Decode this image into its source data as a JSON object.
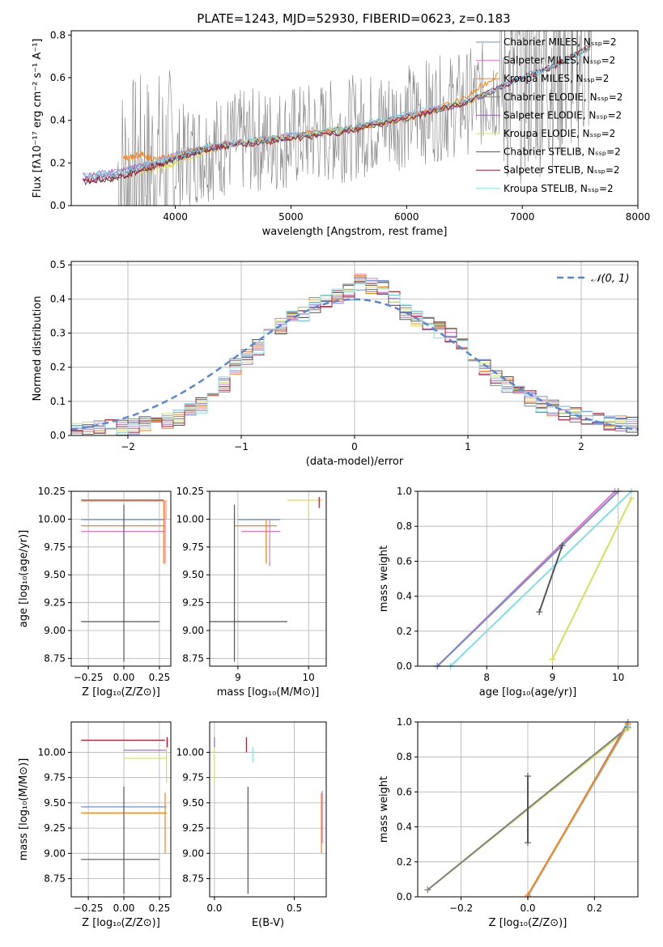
{
  "figure": {
    "title": "PLATE=1243, MJD=52930, FIBERID=0623, z=0.183"
  },
  "chart_data": [
    {
      "id": "spectrum",
      "type": "line",
      "xlabel": "wavelength [Angstrom, rest frame]",
      "ylabel": "Flux [fλ10⁻¹⁷ erg cm⁻² s⁻¹ A⁻¹]",
      "xlim": [
        3100,
        8000
      ],
      "ylim": [
        0,
        0.82
      ],
      "xticks": [
        4000,
        5000,
        6000,
        7000,
        8000
      ],
      "yticks": [
        0.0,
        0.2,
        0.4,
        0.6,
        0.8
      ],
      "grid": false,
      "legend_position": "top-right",
      "series": [
        {
          "name": "Chabrier MILES, Nₛₛₚ=2",
          "color": "#6f8fd9",
          "x": [
            3200,
            3500,
            3800,
            4000,
            4300,
            4600,
            5000,
            5500,
            6000,
            6500,
            7000,
            7300
          ],
          "y": [
            0.14,
            0.16,
            0.2,
            0.24,
            0.28,
            0.3,
            0.33,
            0.36,
            0.42,
            0.48,
            0.6,
            0.66
          ]
        },
        {
          "name": "Salpeter MILES, Nₛₛₚ=2",
          "color": "#e377c2",
          "x": [
            3200,
            3500,
            3800,
            4000,
            4300,
            4600,
            5000,
            5500,
            6000,
            6500,
            7000,
            7300
          ],
          "y": [
            0.14,
            0.16,
            0.2,
            0.24,
            0.28,
            0.3,
            0.33,
            0.36,
            0.42,
            0.48,
            0.6,
            0.66
          ]
        },
        {
          "name": "Kroupa MILES, Nₛₛₚ=2",
          "color": "#ff7f0e",
          "x": [
            3550,
            3700,
            3800,
            4000,
            4300,
            4600,
            5000,
            5500,
            6000,
            6500,
            6800
          ],
          "y": [
            0.22,
            0.24,
            0.22,
            0.23,
            0.28,
            0.3,
            0.33,
            0.36,
            0.41,
            0.5,
            0.62
          ]
        },
        {
          "name": "Chabrier ELODIE, Nₛₛₚ=2",
          "color": "#7f7f7f",
          "x": [
            3200,
            3500,
            3800,
            4000,
            4300,
            4600,
            5000,
            5500,
            6000,
            6500,
            7000,
            7300,
            7600
          ],
          "y": [
            0.12,
            0.15,
            0.19,
            0.22,
            0.27,
            0.3,
            0.32,
            0.36,
            0.42,
            0.48,
            0.6,
            0.66,
            0.75
          ]
        },
        {
          "name": "Salpeter ELODIE, Nₛₛₚ=2",
          "color": "#9467bd",
          "x": [
            3200,
            3500,
            3800,
            4000,
            4300,
            4600,
            5000,
            5500,
            6000,
            6500,
            7000
          ],
          "y": [
            0.12,
            0.15,
            0.19,
            0.22,
            0.27,
            0.3,
            0.32,
            0.36,
            0.42,
            0.48,
            0.6
          ]
        },
        {
          "name": "Kroupa ELODIE, Nₛₛₚ=2",
          "color": "#d4e157",
          "x": [
            3700,
            3900,
            4000,
            4300,
            4600,
            5000,
            5500,
            6000,
            6500,
            6800
          ],
          "y": [
            0.16,
            0.18,
            0.2,
            0.26,
            0.3,
            0.32,
            0.36,
            0.41,
            0.48,
            0.55
          ]
        },
        {
          "name": "Chabrier STELIB, Nₛₛₚ=2",
          "color": "#555555",
          "x": [
            3200,
            3500,
            3800,
            4000,
            4300,
            4600,
            5000,
            5500,
            6000,
            6500,
            7000,
            7300,
            7600
          ],
          "y": [
            0.11,
            0.13,
            0.18,
            0.22,
            0.27,
            0.29,
            0.31,
            0.35,
            0.41,
            0.48,
            0.6,
            0.66,
            0.75
          ]
        },
        {
          "name": "Salpeter STELIB, Nₛₛₚ=2",
          "color": "#b2182b",
          "x": [
            3200,
            3500,
            3800,
            4000,
            4300,
            4600,
            5000,
            5500,
            6000,
            6500,
            7000,
            7300,
            7600
          ],
          "y": [
            0.11,
            0.13,
            0.18,
            0.22,
            0.27,
            0.29,
            0.31,
            0.35,
            0.41,
            0.48,
            0.6,
            0.66,
            0.75
          ]
        },
        {
          "name": "Kroupa STELIB, Nₛₛₚ=2",
          "color": "#7fdfe6",
          "x": [
            3200,
            3500,
            3800,
            4000,
            4300,
            4600,
            5000,
            5500,
            6000,
            6500,
            7000,
            7300,
            7600
          ],
          "y": [
            0.14,
            0.15,
            0.2,
            0.23,
            0.28,
            0.3,
            0.33,
            0.37,
            0.43,
            0.49,
            0.6,
            0.66,
            0.74
          ]
        }
      ]
    },
    {
      "id": "residuals",
      "type": "line",
      "xlabel": "(data-model)/error",
      "ylabel": "Normed distribution",
      "xlim": [
        -2.5,
        2.5
      ],
      "ylim": [
        0,
        0.51
      ],
      "xticks": [
        -2,
        -1,
        0,
        1,
        2
      ],
      "yticks": [
        0.0,
        0.1,
        0.2,
        0.3,
        0.4,
        0.5
      ],
      "grid": true,
      "legend_position": "top-right",
      "reference_curve": {
        "name": "𝒩(0, 1)",
        "color": "#5b86d6",
        "mean": 0,
        "sigma": 1
      },
      "bin_edges": [
        -2.5,
        -2.4,
        -2.3,
        -2.2,
        -2.1,
        -2.0,
        -1.9,
        -1.8,
        -1.7,
        -1.6,
        -1.5,
        -1.4,
        -1.3,
        -1.2,
        -1.1,
        -1.0,
        -0.9,
        -0.8,
        -0.7,
        -0.6,
        -0.5,
        -0.4,
        -0.3,
        -0.2,
        -0.1,
        0.0,
        0.1,
        0.2,
        0.3,
        0.4,
        0.5,
        0.6,
        0.7,
        0.8,
        0.9,
        1.0,
        1.1,
        1.2,
        1.3,
        1.4,
        1.5,
        1.6,
        1.7,
        1.8,
        1.9,
        2.0,
        2.1,
        2.2,
        2.3,
        2.4,
        2.5
      ],
      "histogram": [
        0.018,
        0.02,
        0.022,
        0.024,
        0.025,
        0.028,
        0.03,
        0.035,
        0.04,
        0.05,
        0.07,
        0.09,
        0.12,
        0.15,
        0.2,
        0.23,
        0.26,
        0.3,
        0.32,
        0.34,
        0.36,
        0.38,
        0.39,
        0.41,
        0.42,
        0.45,
        0.44,
        0.43,
        0.4,
        0.36,
        0.34,
        0.33,
        0.31,
        0.29,
        0.26,
        0.23,
        0.2,
        0.17,
        0.15,
        0.13,
        0.11,
        0.09,
        0.08,
        0.07,
        0.06,
        0.05,
        0.045,
        0.04,
        0.035,
        0.03
      ],
      "series_colors": [
        "#6f8fd9",
        "#e377c2",
        "#ff7f0e",
        "#7f7f7f",
        "#9467bd",
        "#d4e157",
        "#555555",
        "#b2182b",
        "#7fdfe6"
      ]
    },
    {
      "id": "age-vs-Z",
      "type": "scatter",
      "xlabel": "Z [log₁₀(Z/Z⊙)]",
      "ylabel": "age  [log₁₀(age/yr)]",
      "xlim": [
        -0.37,
        0.33
      ],
      "ylim": [
        8.68,
        10.25
      ],
      "xticks": [
        -0.25,
        0.0,
        0.25
      ],
      "xticklabels": [
        "−0.25",
        "0.00",
        "0.25"
      ],
      "yticks": [
        8.75,
        9.0,
        9.25,
        9.5,
        9.75,
        10.0,
        10.25
      ],
      "yticklabels": [
        "8.75",
        "9.00",
        "9.25",
        "9.50",
        "9.75",
        "10.00",
        "10.25"
      ],
      "grid": true,
      "hlines": [
        {
          "y": 10.17,
          "x0": -0.3,
          "x1": 0.28,
          "color": "#b2182b"
        },
        {
          "y": 10.16,
          "x0": -0.3,
          "x1": 0.29,
          "color": "#d4e157"
        },
        {
          "y": 9.995,
          "x0": -0.3,
          "x1": 0.29,
          "color": "#6f8fd9"
        },
        {
          "y": 9.94,
          "x0": -0.3,
          "x1": 0.29,
          "color": "#ff7f0e"
        },
        {
          "y": 9.89,
          "x0": -0.3,
          "x1": 0.29,
          "color": "#e377c2"
        },
        {
          "y": 9.08,
          "x0": -0.3,
          "x1": 0.25,
          "color": "#555555"
        }
      ],
      "vlines": [
        {
          "x": 0.0,
          "y0": 8.72,
          "y1": 10.13,
          "color": "#555555"
        },
        {
          "x": 0.28,
          "y0": 9.6,
          "y1": 10.17,
          "color": "#ff7f0e"
        },
        {
          "x": 0.29,
          "y0": 9.6,
          "y1": 10.17,
          "color": "#e377c2"
        },
        {
          "x": 0.3,
          "y0": 10.0,
          "y1": 10.17,
          "color": "#d4e157"
        }
      ]
    },
    {
      "id": "age-vs-mass",
      "type": "scatter",
      "xlabel": "mass [log₁₀(M/M⊙)]",
      "ylabel": "",
      "xlim": [
        8.6,
        10.25
      ],
      "ylim": [
        8.68,
        10.25
      ],
      "xticks": [
        9,
        10
      ],
      "yticks": [
        8.75,
        9.0,
        9.25,
        9.5,
        9.75,
        10.0,
        10.25
      ],
      "yticklabels": [
        "8.75",
        "9.00",
        "9.25",
        "9.50",
        "9.75",
        "10.00",
        "10.25"
      ],
      "grid": true,
      "hlines": [
        {
          "y": 10.17,
          "x0": 9.7,
          "x1": 10.2,
          "color": "#d4e157"
        },
        {
          "y": 9.995,
          "x0": 9.0,
          "x1": 9.6,
          "color": "#6f8fd9"
        },
        {
          "y": 9.94,
          "x0": 8.95,
          "x1": 9.55,
          "color": "#ff7f0e"
        },
        {
          "y": 9.89,
          "x0": 9.05,
          "x1": 9.6,
          "color": "#e377c2"
        },
        {
          "y": 9.08,
          "x0": 8.6,
          "x1": 9.7,
          "color": "#555555"
        }
      ],
      "vlines": [
        {
          "x": 8.95,
          "y0": 8.72,
          "y1": 10.13,
          "color": "#555555"
        },
        {
          "x": 9.4,
          "y0": 9.6,
          "y1": 10.0,
          "color": "#ff7f0e"
        },
        {
          "x": 9.45,
          "y0": 9.58,
          "y1": 10.0,
          "color": "#e377c2"
        },
        {
          "x": 10.0,
          "y0": 10.0,
          "y1": 10.17,
          "color": "#d4e157"
        },
        {
          "x": 10.15,
          "y0": 10.1,
          "y1": 10.2,
          "color": "#b2182b"
        }
      ]
    },
    {
      "id": "massweight-vs-age",
      "type": "line",
      "xlabel": "age  [log₁₀(age/yr)]",
      "ylabel": "mass weight",
      "xlim": [
        6.95,
        10.3
      ],
      "ylim": [
        0,
        1
      ],
      "xticks": [
        8,
        9,
        10
      ],
      "yticks": [
        0.0,
        0.2,
        0.4,
        0.6,
        0.8,
        1.0
      ],
      "grid": true,
      "series": [
        {
          "color": "#ff7f0e",
          "x": [
            7.25,
            10.0
          ],
          "y": [
            0.0,
            1.0
          ]
        },
        {
          "color": "#e377c2",
          "x": [
            7.25,
            9.95
          ],
          "y": [
            0.0,
            1.0
          ]
        },
        {
          "color": "#6f8fd9",
          "x": [
            7.25,
            10.0
          ],
          "y": [
            0.0,
            1.0
          ]
        },
        {
          "color": "#7fdfe6",
          "x": [
            7.45,
            10.2
          ],
          "y": [
            0.0,
            1.0
          ]
        },
        {
          "color": "#d4e157",
          "x": [
            9.0,
            10.2
          ],
          "y": [
            0.04,
            0.96
          ]
        },
        {
          "color": "#555555",
          "x": [
            8.8,
            9.15
          ],
          "y": [
            0.31,
            0.69
          ]
        }
      ]
    },
    {
      "id": "mass-vs-Z",
      "type": "scatter",
      "xlabel": "Z [log₁₀(Z/Z⊙)]",
      "ylabel": "mass [log₁₀(M/M⊙)]",
      "xlim": [
        -0.37,
        0.33
      ],
      "ylim": [
        8.57,
        10.3
      ],
      "xticks": [
        -0.25,
        0.0,
        0.25
      ],
      "xticklabels": [
        "−0.25",
        "0.00",
        "0.25"
      ],
      "yticks": [
        8.75,
        9.0,
        9.25,
        9.5,
        9.75,
        10.0
      ],
      "yticklabels": [
        "8.75",
        "9.00",
        "9.25",
        "9.50",
        "9.75",
        "10.00"
      ],
      "grid": true,
      "hlines": [
        {
          "y": 10.12,
          "x0": -0.3,
          "x1": 0.29,
          "color": "#b2182b"
        },
        {
          "y": 10.02,
          "x0": 0.0,
          "x1": 0.3,
          "color": "#9467bd"
        },
        {
          "y": 9.94,
          "x0": 0.0,
          "x1": 0.3,
          "color": "#d4e157"
        },
        {
          "y": 9.46,
          "x0": -0.3,
          "x1": 0.3,
          "color": "#6f8fd9"
        },
        {
          "y": 9.4,
          "x0": -0.3,
          "x1": 0.3,
          "color": "#ff7f0e"
        },
        {
          "y": 8.94,
          "x0": -0.3,
          "x1": 0.25,
          "color": "#555555"
        }
      ],
      "vlines": [
        {
          "x": 0.0,
          "y0": 8.6,
          "y1": 9.66,
          "color": "#555555"
        },
        {
          "x": 0.29,
          "y0": 9.0,
          "y1": 9.6,
          "color": "#ff7f0e"
        },
        {
          "x": 0.3,
          "y0": 9.7,
          "y1": 10.15,
          "color": "#d4e157"
        },
        {
          "x": 0.305,
          "y0": 10.05,
          "y1": 10.15,
          "color": "#b2182b"
        }
      ]
    },
    {
      "id": "mass-vs-ebv",
      "type": "scatter",
      "xlabel": "E(B-V)",
      "ylabel": "",
      "xlim": [
        -0.03,
        0.7
      ],
      "ylim": [
        8.57,
        10.3
      ],
      "xticks": [
        0.0,
        0.5
      ],
      "xticklabels": [
        "0.0",
        "0.5"
      ],
      "yticks": [
        8.75,
        9.0,
        9.25,
        9.5,
        9.75,
        10.0
      ],
      "yticklabels": [
        "8.75",
        "9.00",
        "9.25",
        "9.50",
        "9.75",
        "10.00"
      ],
      "grid": true,
      "vlines": [
        {
          "x": 0.0,
          "y0": 9.7,
          "y1": 10.05,
          "color": "#d4e157"
        },
        {
          "x": 0.0,
          "y0": 10.05,
          "y1": 10.15,
          "color": "#9467bd"
        },
        {
          "x": 0.2,
          "y0": 10.0,
          "y1": 10.15,
          "color": "#b2182b"
        },
        {
          "x": 0.24,
          "y0": 9.9,
          "y1": 10.05,
          "color": "#7fdfe6"
        },
        {
          "x": 0.21,
          "y0": 8.6,
          "y1": 9.66,
          "color": "#555555"
        },
        {
          "x": 0.67,
          "y0": 9.0,
          "y1": 9.6,
          "color": "#ff7f0e"
        },
        {
          "x": 0.675,
          "y0": 9.1,
          "y1": 9.62,
          "color": "#e377c2"
        }
      ]
    },
    {
      "id": "massweight-vs-Z",
      "type": "line",
      "xlabel": "Z [log₁₀(Z/Z⊙)]",
      "ylabel": "mass weight",
      "xlim": [
        -0.33,
        0.33
      ],
      "ylim": [
        0,
        1
      ],
      "xticks": [
        -0.2,
        0.0,
        0.2
      ],
      "xticklabels": [
        "−0.2",
        "0.0",
        "0.2"
      ],
      "yticks": [
        0.0,
        0.2,
        0.4,
        0.6,
        0.8,
        1.0
      ],
      "grid": true,
      "series": [
        {
          "color": "#d4e157",
          "x": [
            -0.3,
            0.3
          ],
          "y": [
            0.04,
            0.96
          ]
        },
        {
          "color": "#7f7f7f",
          "x": [
            -0.3,
            0.3
          ],
          "y": [
            0.04,
            0.97
          ]
        },
        {
          "color": "#6f8fd9",
          "x": [
            0.0,
            0.3
          ],
          "y": [
            0.0,
            1.0
          ]
        },
        {
          "color": "#7fdfe6",
          "x": [
            0.0,
            0.3
          ],
          "y": [
            0.0,
            0.98
          ]
        },
        {
          "color": "#ff7f0e",
          "x": [
            0.0,
            0.3
          ],
          "y": [
            0.01,
            0.99
          ]
        },
        {
          "color": "#555555",
          "x": [
            0.0,
            0.0
          ],
          "y": [
            0.31,
            0.69
          ]
        }
      ]
    }
  ]
}
